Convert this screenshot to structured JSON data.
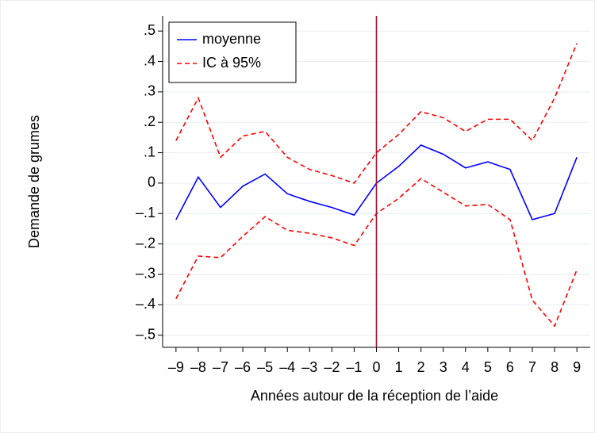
{
  "chart_data": {
    "type": "line",
    "xlabel": "Années autour de la réception de l’aide",
    "ylabel": "Demande de grumes",
    "x": [
      -9,
      -8,
      -7,
      -6,
      -5,
      -4,
      -3,
      -2,
      -1,
      0,
      1,
      2,
      3,
      4,
      5,
      6,
      7,
      8,
      9
    ],
    "series": [
      {
        "name": "moyenne",
        "color": "#0000ff",
        "dash": false,
        "values": [
          -0.12,
          0.02,
          -0.08,
          -0.01,
          0.03,
          -0.035,
          -0.06,
          -0.08,
          -0.105,
          0,
          0.055,
          0.125,
          0.095,
          0.05,
          0.07,
          0.045,
          -0.12,
          -0.1,
          0.085
        ]
      },
      {
        "name": "IC à 95%",
        "color": "#ff0000",
        "dash": true,
        "values": [
          0.14,
          0.28,
          0.085,
          0.155,
          0.17,
          0.085,
          0.045,
          0.025,
          0,
          0.1,
          0.16,
          0.235,
          0.215,
          0.17,
          0.21,
          0.21,
          0.14,
          0.28,
          0.46
        ],
        "lower": [
          -0.38,
          -0.24,
          -0.245,
          -0.175,
          -0.11,
          -0.155,
          -0.165,
          -0.18,
          -0.205,
          -0.1,
          -0.05,
          0.015,
          -0.03,
          -0.075,
          -0.07,
          -0.12,
          -0.385,
          -0.47,
          -0.285
        ]
      }
    ],
    "reference_line": {
      "x": 0,
      "color": "#a0102a"
    },
    "xlim": [
      -9.6,
      9.6
    ],
    "ylim": [
      -0.54,
      0.55
    ],
    "xticks": [
      {
        "value": -9,
        "label": "–9"
      },
      {
        "value": -8,
        "label": "–8"
      },
      {
        "value": -7,
        "label": "–7"
      },
      {
        "value": -6,
        "label": "–6"
      },
      {
        "value": -5,
        "label": "–5"
      },
      {
        "value": -4,
        "label": "–4"
      },
      {
        "value": -3,
        "label": "–3"
      },
      {
        "value": -2,
        "label": "–2"
      },
      {
        "value": -1,
        "label": "–1"
      },
      0,
      1,
      2,
      3,
      4,
      5,
      6,
      7,
      8,
      9
    ],
    "yticks": [
      {
        "value": -0.5,
        "label": "–.5"
      },
      {
        "value": -0.4,
        "label": "–.4"
      },
      {
        "value": -0.3,
        "label": "–.3"
      },
      {
        "value": -0.2,
        "label": "–.2"
      },
      {
        "value": -0.1,
        "label": "–.1"
      },
      0,
      {
        "value": 0.1,
        "label": ".1"
      },
      {
        "value": 0.2,
        "label": ".2"
      },
      {
        "value": 0.3,
        "label": ".3"
      },
      {
        "value": 0.4,
        "label": ".4"
      },
      {
        "value": 0.5,
        "label": ".5"
      }
    ],
    "grid": true,
    "legend": "top-left"
  }
}
